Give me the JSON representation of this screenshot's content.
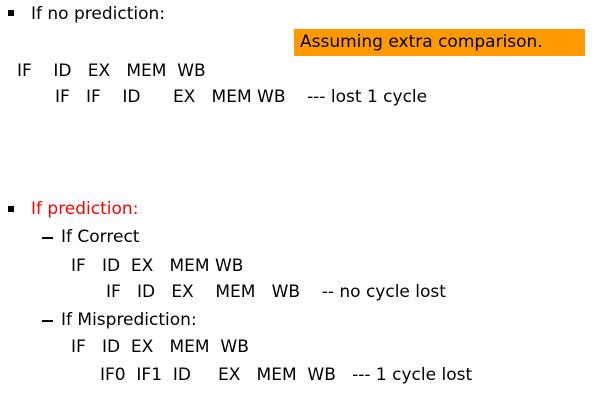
{
  "section_no_prediction": {
    "heading": "If no prediction:",
    "note": "Assuming extra comparison.",
    "note_bg": "#ff9900",
    "row1": "IF    ID   EX   MEM  WB",
    "row2": "IF   IF    ID      EX   MEM WB    --- lost 1 cycle"
  },
  "section_prediction": {
    "heading": "If prediction:",
    "heading_color": "#ff0000",
    "correct": {
      "label": "If Correct",
      "row1": "IF   ID  EX   MEM WB",
      "row2": "IF   ID   EX    MEM   WB    -- no cycle lost"
    },
    "misprediction": {
      "label": "If Misprediction:",
      "row1": "IF   ID  EX   MEM  WB",
      "row2": "IF0  IF1  ID     EX   MEM  WB   --- 1 cycle lost"
    }
  }
}
